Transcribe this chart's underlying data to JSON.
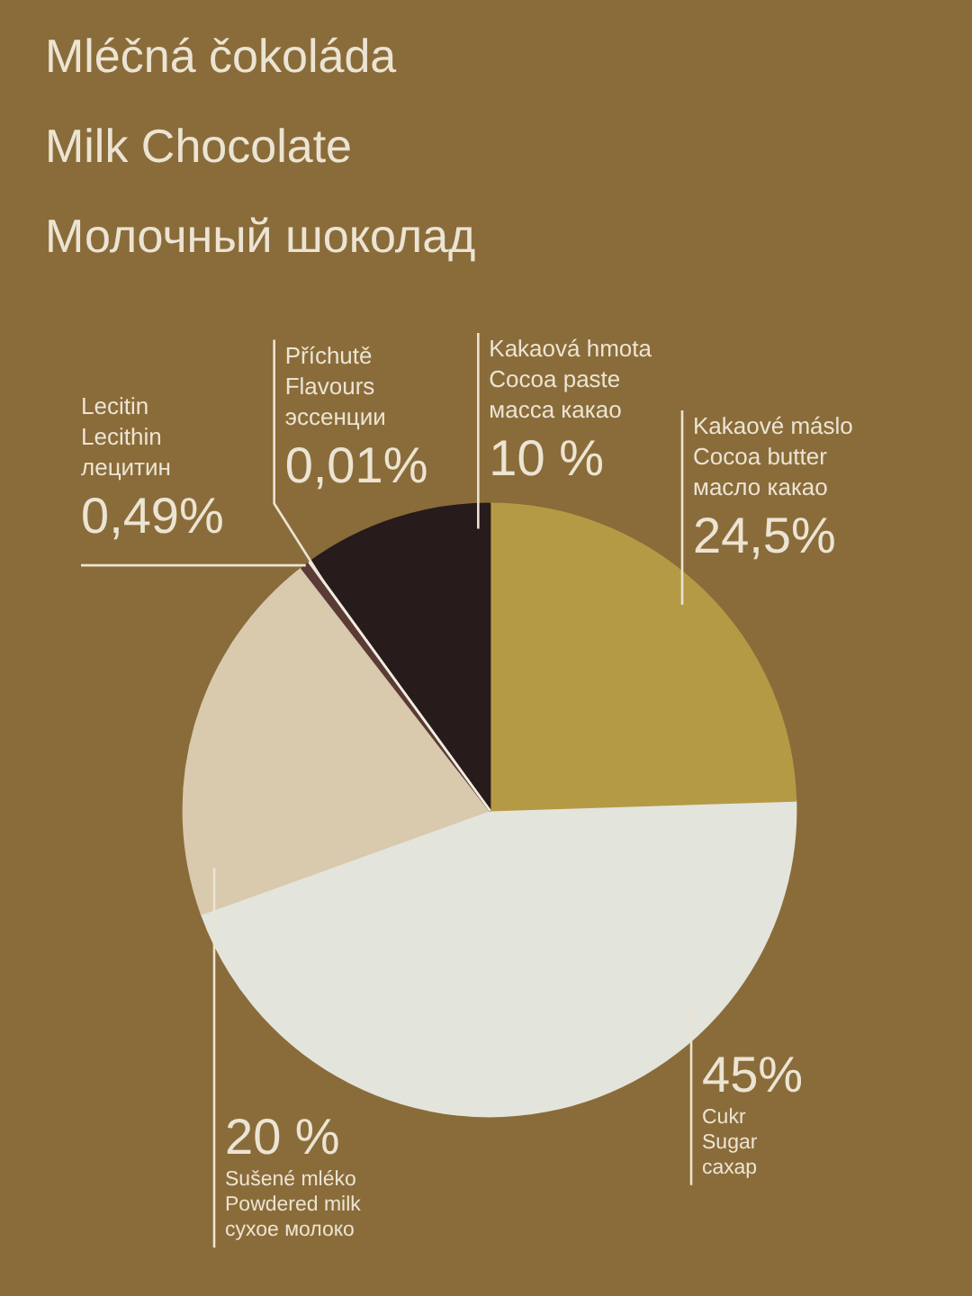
{
  "chart_data": {
    "type": "pie",
    "title": "Mléčná čokoláda\nMilk Chocolate\nМолочный шоколад",
    "categories": [
      "Kakaové máslo\nCocoa butter\nмасло какао",
      "Cukr\nSugar\nсахар",
      "Sušené mléko\nPowdered milk\nсухое молоко",
      "Lecitin\nLecithin\nлецитин",
      "Příchutě\nFlavours\nэссенции",
      "Kakaová hmota\nCocoa paste\nмасса какао"
    ],
    "values": [
      24.5,
      45,
      20,
      0.49,
      0.01,
      10
    ],
    "value_labels": [
      "24,5%",
      "45%",
      "20 %",
      "0,49%",
      "0,01%",
      "10 %"
    ],
    "colors": [
      "#b59a45",
      "#e3e4dc",
      "#d9c9ad",
      "#5b3b36",
      "#f2ede2",
      "#271b1c"
    ]
  }
}
